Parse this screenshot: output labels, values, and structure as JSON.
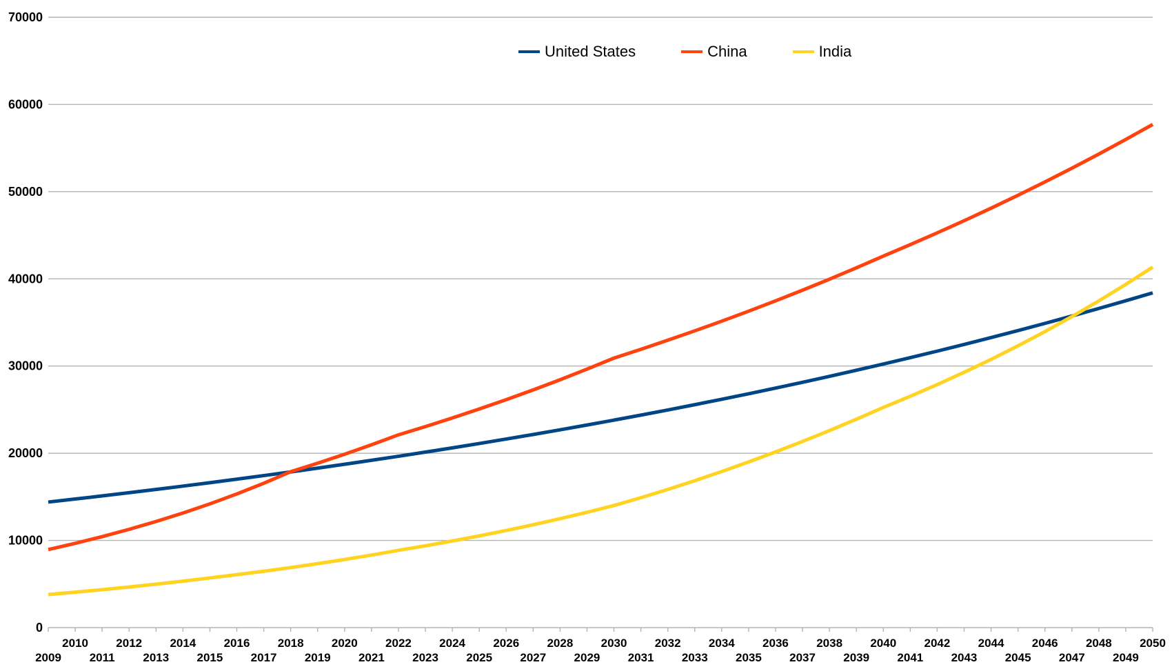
{
  "chart_data": {
    "type": "line",
    "x": [
      2009,
      2010,
      2011,
      2012,
      2013,
      2014,
      2015,
      2016,
      2017,
      2018,
      2019,
      2020,
      2021,
      2022,
      2023,
      2024,
      2025,
      2026,
      2027,
      2028,
      2029,
      2030,
      2031,
      2032,
      2033,
      2034,
      2035,
      2036,
      2037,
      2038,
      2039,
      2040,
      2041,
      2042,
      2043,
      2044,
      2045,
      2046,
      2047,
      2048,
      2049,
      2050
    ],
    "series": [
      {
        "name": "United States",
        "color": "#004586",
        "values": [
          14400,
          14748,
          15105,
          15471,
          15846,
          16229,
          16622,
          17025,
          17437,
          17859,
          18291,
          18734,
          19188,
          19652,
          20128,
          20615,
          21114,
          21626,
          22149,
          22685,
          23234,
          23797,
          24373,
          24963,
          25567,
          26186,
          26820,
          27469,
          28134,
          28815,
          29513,
          30227,
          30959,
          31708,
          32476,
          33262,
          34067,
          34892,
          35736,
          36601,
          37487,
          38394
        ]
      },
      {
        "name": "China",
        "color": "#FF420E",
        "values": [
          8950,
          9665,
          10437,
          11271,
          12171,
          13143,
          14193,
          15329,
          16556,
          17881,
          18856,
          19884,
          20968,
          22111,
          23057,
          24043,
          25071,
          26143,
          27261,
          28427,
          29643,
          30911,
          31919,
          32960,
          34035,
          35145,
          36291,
          37475,
          38697,
          39959,
          41262,
          42608,
          43920,
          45273,
          46667,
          48105,
          49587,
          51114,
          52688,
          54311,
          55984,
          57708
        ]
      },
      {
        "name": "India",
        "color": "#FFD320",
        "values": [
          3800,
          4066,
          4350,
          4654,
          4980,
          5328,
          5700,
          6071,
          6466,
          6887,
          7335,
          7812,
          8320,
          8861,
          9383,
          9935,
          10520,
          11140,
          11796,
          12490,
          13226,
          14005,
          14900,
          15850,
          16850,
          17900,
          19000,
          20150,
          21350,
          22600,
          23900,
          25250,
          26530,
          27870,
          29280,
          30760,
          32320,
          33950,
          35670,
          37470,
          39360,
          41350
        ]
      }
    ],
    "ylim": [
      0,
      70000
    ],
    "yticks": [
      0,
      10000,
      20000,
      30000,
      40000,
      50000,
      60000,
      70000
    ],
    "xlabel": "",
    "ylabel": "",
    "grid": "horizontal-only",
    "legend_position": "top-center",
    "x_tick_label_layout": "staggered: even years on upper row, odd years on lower row",
    "colors": {
      "gridline": "#b3b3b3",
      "axis": "#b3b3b3",
      "text": "#000000",
      "background": "#ffffff"
    }
  }
}
